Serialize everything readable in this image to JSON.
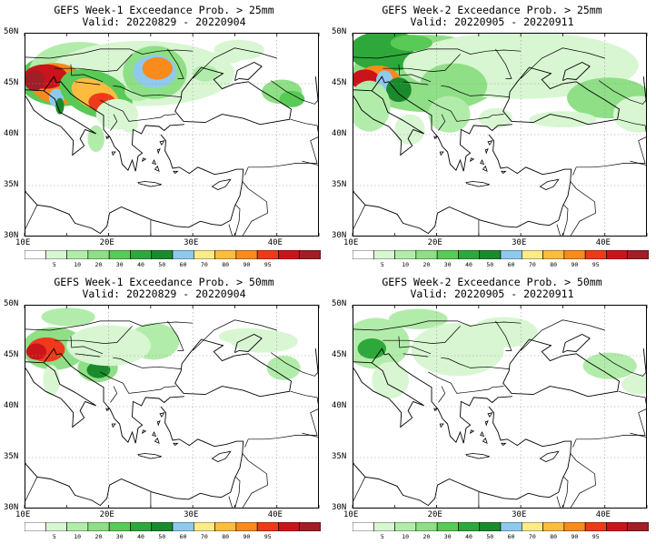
{
  "panels": [
    {
      "title": "GEFS Week-1 Exceedance Prob. > 25mm",
      "valid": "Valid: 20220829 - 20220904"
    },
    {
      "title": "GEFS Week-2 Exceedance Prob. > 25mm",
      "valid": "Valid: 20220905 - 20220911"
    },
    {
      "title": "GEFS Week-1 Exceedance Prob. > 50mm",
      "valid": "Valid: 20220829 - 20220904"
    },
    {
      "title": "GEFS Week-2 Exceedance Prob. > 50mm",
      "valid": "Valid: 20220905 - 20220911"
    }
  ],
  "axes": {
    "lat_labels": [
      "50N",
      "45N",
      "40N",
      "35N",
      "30N"
    ],
    "lon_labels": [
      "10E",
      "20E",
      "30E",
      "40E"
    ]
  },
  "colorbar": {
    "labels": [
      "5",
      "10",
      "20",
      "30",
      "40",
      "50",
      "60",
      "70",
      "80",
      "90",
      "95"
    ],
    "colors": [
      "#ffffff",
      "#d8f6d2",
      "#b2ecaa",
      "#8fdf86",
      "#58ca55",
      "#2ea83a",
      "#1a8a2c",
      "#8fc9ee",
      "#fdeb8a",
      "#fdbc40",
      "#f98a1c",
      "#ee3a1a",
      "#c8141a",
      "#a01e26"
    ]
  }
}
